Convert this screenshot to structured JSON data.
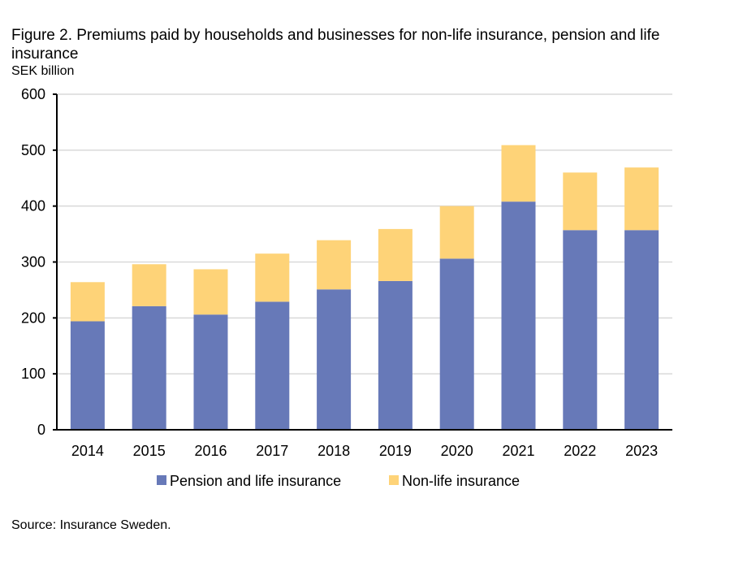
{
  "chart_data": {
    "type": "bar",
    "stacked": true,
    "title": "Figure 2. Premiums paid by households and businesses for non-life insurance, pension and life insurance",
    "ylabel": "SEK billion",
    "xlabel": "",
    "ylim": [
      0,
      600
    ],
    "yticks": [
      0,
      100,
      200,
      300,
      400,
      500,
      600
    ],
    "grid": true,
    "legend_position": "bottom",
    "categories": [
      "2014",
      "2015",
      "2016",
      "2017",
      "2018",
      "2019",
      "2020",
      "2021",
      "2022",
      "2023"
    ],
    "series": [
      {
        "name": "Pension and life insurance",
        "color": "#6779b8",
        "values": [
          194,
          221,
          206,
          229,
          251,
          266,
          306,
          408,
          357,
          357
        ]
      },
      {
        "name": "Non-life insurance",
        "color": "#fed378",
        "values": [
          70,
          75,
          81,
          86,
          88,
          93,
          94,
          101,
          103,
          112
        ]
      }
    ],
    "source": "Source: Insurance Sweden."
  }
}
